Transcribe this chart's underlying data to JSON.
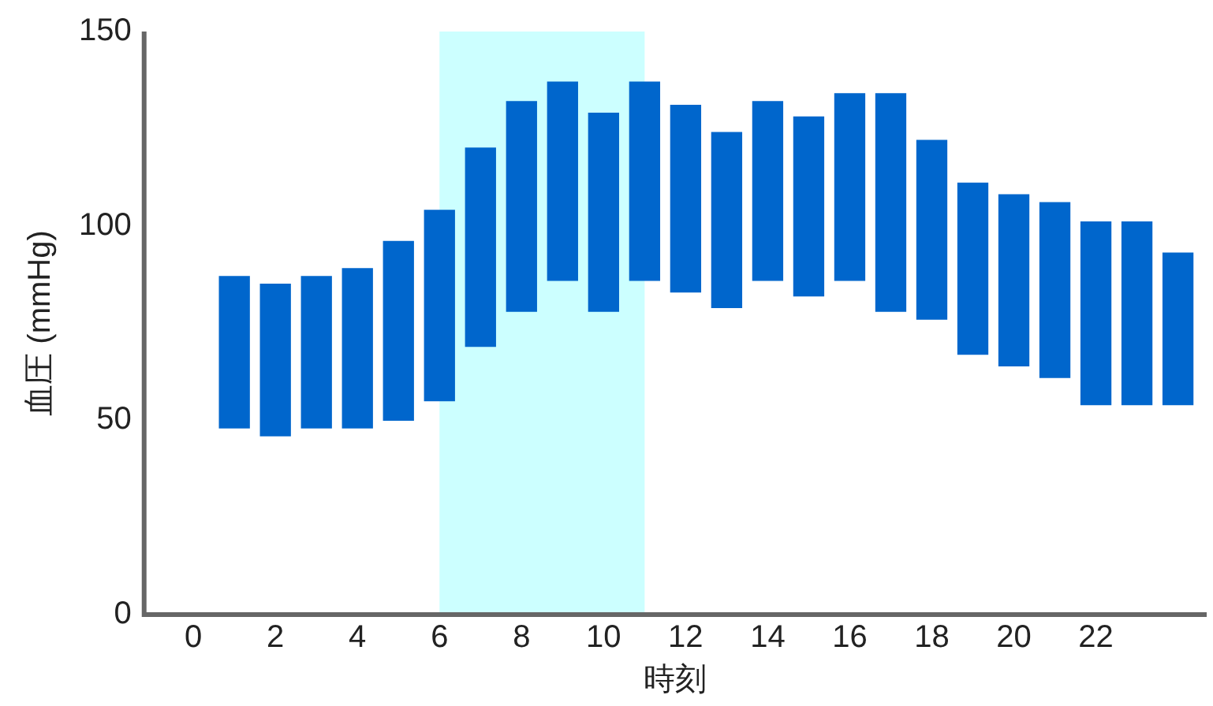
{
  "chart_data": {
    "type": "bar",
    "xlabel": "時刻",
    "ylabel": "血圧 (mmHg)",
    "x": [
      1,
      2,
      3,
      4,
      5,
      6,
      7,
      8,
      9,
      10,
      11,
      12,
      13,
      14,
      15,
      16,
      17,
      18,
      19,
      20,
      21,
      22,
      23,
      24
    ],
    "base": [
      48,
      46,
      48,
      48,
      50,
      55,
      69,
      78,
      86,
      78,
      86,
      83,
      79,
      86,
      82,
      86,
      78,
      76,
      67,
      64,
      61,
      54,
      54,
      54
    ],
    "values": [
      39,
      39,
      39,
      41,
      46,
      49,
      51,
      54,
      51,
      51,
      51,
      48,
      45,
      46,
      46,
      48,
      56,
      46,
      44,
      44,
      45,
      47,
      47,
      39
    ],
    "color": "#0066cc",
    "xlim": [
      -1.2,
      24.7
    ],
    "xticks": [
      0,
      2,
      4,
      6,
      8,
      10,
      12,
      14,
      16,
      18,
      20,
      22
    ],
    "ylim": [
      0,
      150
    ],
    "yticks": [
      0,
      50,
      100,
      150
    ],
    "bands": [
      {
        "axis": "x",
        "from": 6,
        "to": 11,
        "color": "#ccffff"
      }
    ],
    "grid": false,
    "legend": false
  }
}
